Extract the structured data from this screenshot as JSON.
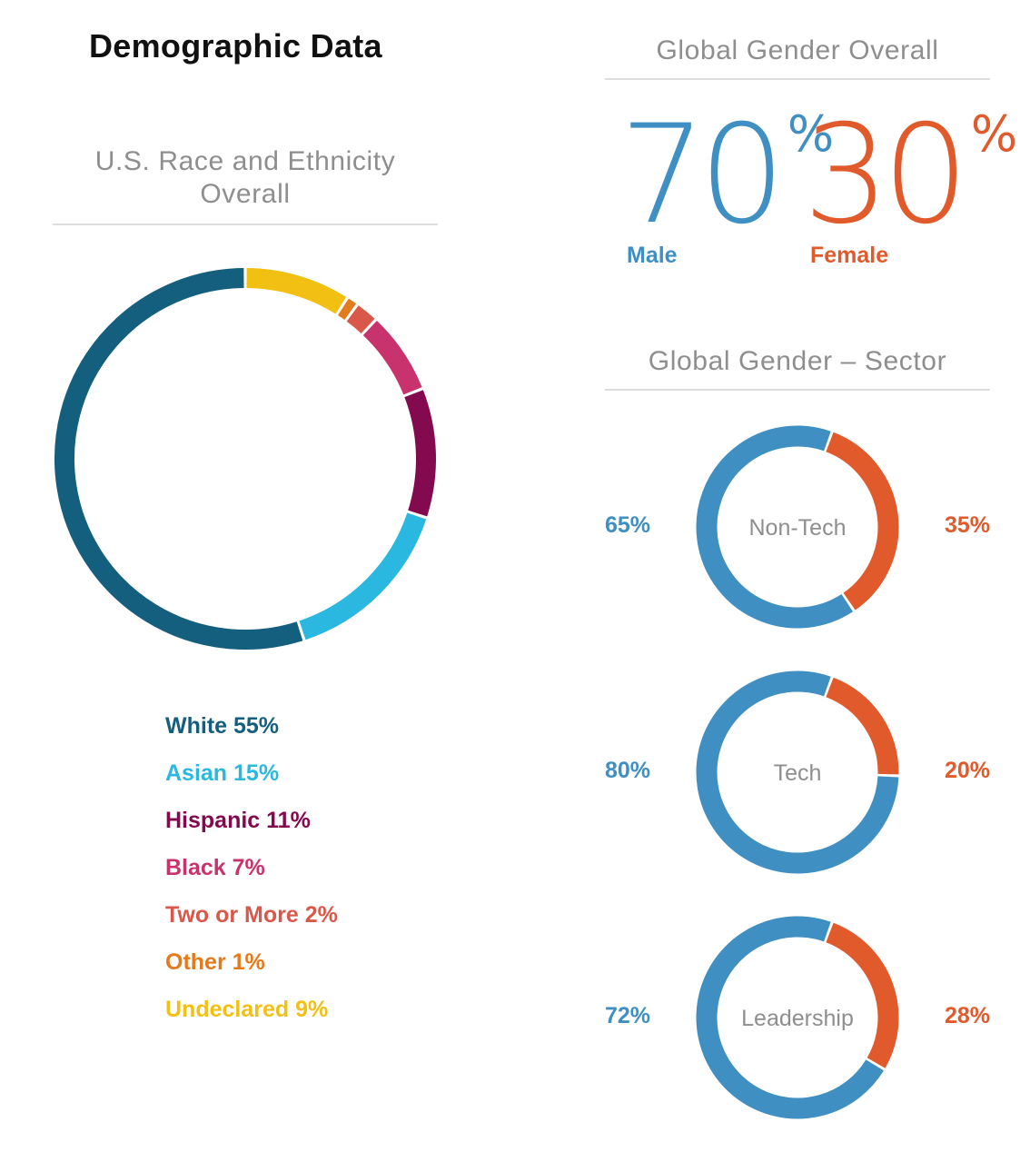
{
  "page_title": "Demographic Data",
  "race_section": {
    "title_line1": "U.S. Race and Ethnicity",
    "title_line2": "Overall"
  },
  "gender_overall_section": {
    "title": "Global Gender Overall",
    "male_value": "70",
    "male_label": "Male",
    "female_value": "30",
    "female_label": "Female",
    "percent_sign": "%"
  },
  "gender_sector_section": {
    "title": "Global Gender – Sector"
  },
  "colors": {
    "male": "#3f8fc2",
    "female": "#e05a2c",
    "divider": "#dcdcdc",
    "section_title": "#8e8e8e"
  },
  "chart_data": [
    {
      "type": "pie",
      "title": "U.S. Race and Ethnicity Overall",
      "donut": true,
      "categories": [
        "White",
        "Asian",
        "Hispanic",
        "Black",
        "Two or More",
        "Other",
        "Undeclared"
      ],
      "values": [
        55,
        15,
        11,
        7,
        2,
        1,
        9
      ],
      "colors": [
        "#155f7e",
        "#2bb8e0",
        "#840a4f",
        "#c8336e",
        "#d9584a",
        "#e37a1c",
        "#f2c012"
      ],
      "legend": [
        "White 55%",
        "Asian 15%",
        "Hispanic 11%",
        "Black 7%",
        "Two or More 2%",
        "Other 1%",
        "Undeclared 9%"
      ]
    },
    {
      "type": "pie",
      "title": "Non-Tech",
      "donut": true,
      "categories": [
        "Male",
        "Female"
      ],
      "values": [
        65,
        35
      ],
      "labels": [
        "65%",
        "35%"
      ]
    },
    {
      "type": "pie",
      "title": "Tech",
      "donut": true,
      "categories": [
        "Male",
        "Female"
      ],
      "values": [
        80,
        20
      ],
      "labels": [
        "80%",
        "20%"
      ]
    },
    {
      "type": "pie",
      "title": "Leadership",
      "donut": true,
      "categories": [
        "Male",
        "Female"
      ],
      "values": [
        72,
        28
      ],
      "labels": [
        "72%",
        "28%"
      ]
    }
  ]
}
